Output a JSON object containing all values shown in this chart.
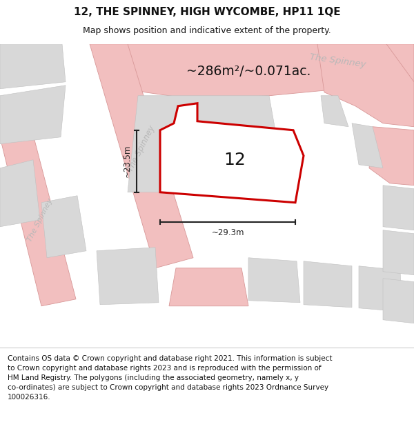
{
  "title": "12, THE SPINNEY, HIGH WYCOMBE, HP11 1QE",
  "subtitle": "Map shows position and indicative extent of the property.",
  "footer": "Contains OS data © Crown copyright and database right 2021. This information is subject\nto Crown copyright and database rights 2023 and is reproduced with the permission of\nHM Land Registry. The polygons (including the associated geometry, namely x, y\nco-ordinates) are subject to Crown copyright and database rights 2023 Ordnance Survey\n100026316.",
  "area_label": "~286m²/~0.071ac.",
  "property_number": "12",
  "dim_height": "~23.5m",
  "dim_width": "~29.3m",
  "map_bg": "#ececec",
  "road_color": "#f2bfbf",
  "road_border_color": "#d89898",
  "block_color": "#d8d8d8",
  "block_edge": "#c0c0c0",
  "property_fill": "#ffffff",
  "property_edge": "#cc0000",
  "title_color": "#111111",
  "footer_color": "#111111",
  "street_label_color": "#b8b8b8",
  "dim_color": "#222222",
  "fig_width": 6.0,
  "fig_height": 6.25,
  "dpi": 100
}
